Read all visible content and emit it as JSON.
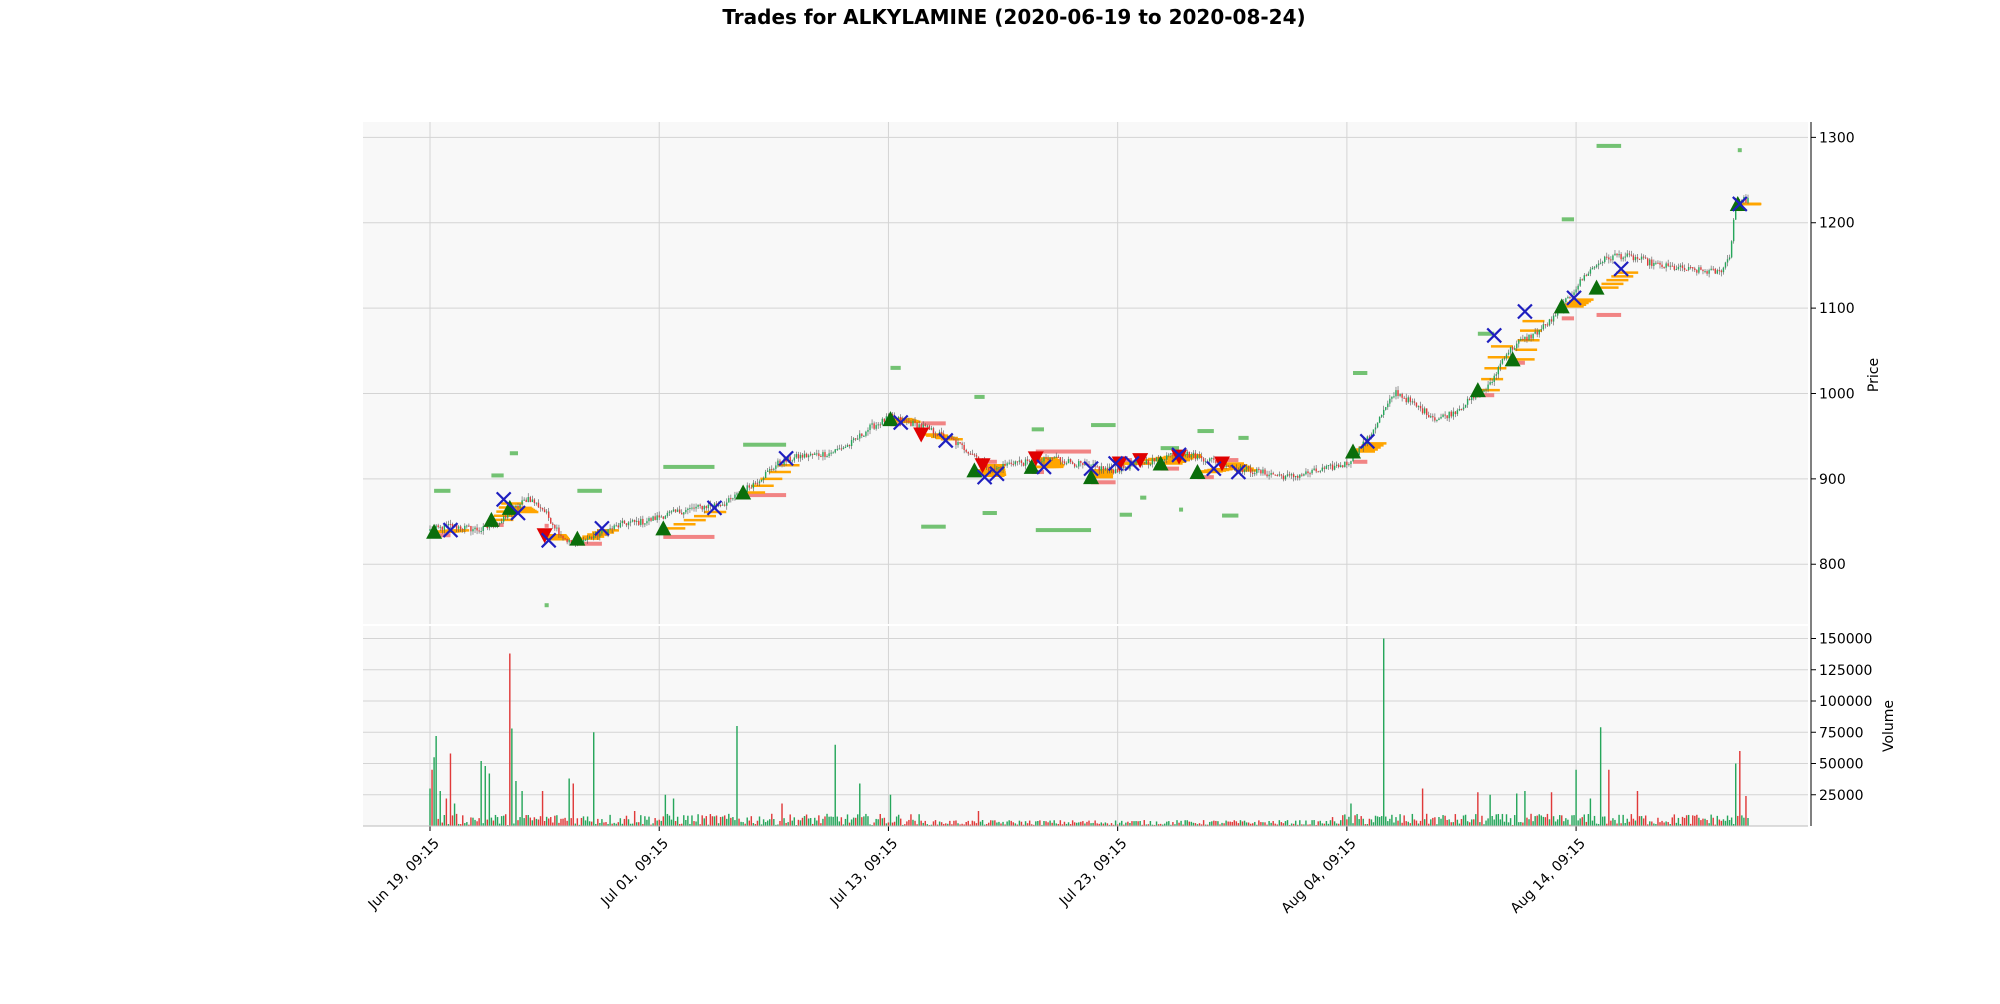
{
  "chart_data": {
    "type": "candlestick",
    "title": "Trades for ALKYLAMINE (2020-06-19 to 2020-08-24)",
    "price_panel": {
      "ylabel": "Price",
      "ylim": [
        730,
        1318
      ],
      "yticks": [
        800,
        900,
        1000,
        1100,
        1200,
        1300
      ],
      "grid": true,
      "background": "#f8f8f8"
    },
    "volume_panel": {
      "ylabel": "Volume",
      "ylim": [
        0,
        160000
      ],
      "yticks": [
        "25000",
        "50000",
        "75000",
        "100000",
        "125000",
        "150000"
      ],
      "ytick_values": [
        25000,
        50000,
        75000,
        100000,
        125000,
        150000
      ],
      "grid": true
    },
    "x_ticks": [
      "Jun 19, 09:15",
      "Jul 01, 09:15",
      "Jul 13, 09:15",
      "Jul 23, 09:15",
      "Aug 04, 09:15",
      "Aug 14, 09:15"
    ],
    "x_tick_index": [
      0,
      112,
      224,
      336,
      448,
      560
    ],
    "bar_count": 645,
    "price_path": [
      [
        0,
        840
      ],
      [
        10,
        845
      ],
      [
        25,
        840
      ],
      [
        35,
        850
      ],
      [
        40,
        862
      ],
      [
        48,
        878
      ],
      [
        55,
        865
      ],
      [
        60,
        848
      ],
      [
        65,
        832
      ],
      [
        70,
        822
      ],
      [
        75,
        828
      ],
      [
        85,
        838
      ],
      [
        95,
        848
      ],
      [
        105,
        850
      ],
      [
        115,
        858
      ],
      [
        130,
        866
      ],
      [
        145,
        872
      ],
      [
        160,
        898
      ],
      [
        170,
        918
      ],
      [
        180,
        926
      ],
      [
        195,
        930
      ],
      [
        205,
        940
      ],
      [
        215,
        960
      ],
      [
        225,
        972
      ],
      [
        240,
        962
      ],
      [
        255,
        945
      ],
      [
        265,
        930
      ],
      [
        275,
        910
      ],
      [
        285,
        920
      ],
      [
        295,
        918
      ],
      [
        305,
        925
      ],
      [
        320,
        915
      ],
      [
        335,
        910
      ],
      [
        345,
        918
      ],
      [
        355,
        922
      ],
      [
        365,
        932
      ],
      [
        375,
        926
      ],
      [
        385,
        920
      ],
      [
        395,
        912
      ],
      [
        405,
        908
      ],
      [
        420,
        902
      ],
      [
        435,
        910
      ],
      [
        448,
        918
      ],
      [
        458,
        946
      ],
      [
        465,
        975
      ],
      [
        472,
        1002
      ],
      [
        482,
        985
      ],
      [
        492,
        970
      ],
      [
        500,
        978
      ],
      [
        510,
        995
      ],
      [
        518,
        1010
      ],
      [
        525,
        1045
      ],
      [
        532,
        1060
      ],
      [
        540,
        1070
      ],
      [
        550,
        1090
      ],
      [
        558,
        1118
      ],
      [
        565,
        1140
      ],
      [
        572,
        1155
      ],
      [
        580,
        1162
      ],
      [
        590,
        1158
      ],
      [
        600,
        1150
      ],
      [
        615,
        1145
      ],
      [
        630,
        1142
      ],
      [
        635,
        1160
      ],
      [
        638,
        1225
      ],
      [
        645,
        1228
      ]
    ],
    "volume_spikes": [
      [
        0,
        30000
      ],
      [
        1,
        45000
      ],
      [
        2,
        55000
      ],
      [
        3,
        72000
      ],
      [
        5,
        28000
      ],
      [
        8,
        22000
      ],
      [
        10,
        58000
      ],
      [
        12,
        18000
      ],
      [
        25,
        52000
      ],
      [
        27,
        48000
      ],
      [
        29,
        42000
      ],
      [
        39,
        138000
      ],
      [
        40,
        78000
      ],
      [
        42,
        36000
      ],
      [
        45,
        28000
      ],
      [
        55,
        28000
      ],
      [
        68,
        38000
      ],
      [
        70,
        34000
      ],
      [
        80,
        75000
      ],
      [
        100,
        12000
      ],
      [
        115,
        25000
      ],
      [
        119,
        22000
      ],
      [
        150,
        80000
      ],
      [
        172,
        18000
      ],
      [
        198,
        65000
      ],
      [
        210,
        34000
      ],
      [
        225,
        25000
      ],
      [
        268,
        12000
      ],
      [
        450,
        18000
      ],
      [
        466,
        150000
      ],
      [
        485,
        30000
      ],
      [
        512,
        27000
      ],
      [
        518,
        25000
      ],
      [
        531,
        26000
      ],
      [
        535,
        28000
      ],
      [
        548,
        27000
      ],
      [
        560,
        45000
      ],
      [
        567,
        22000
      ],
      [
        572,
        79000
      ],
      [
        576,
        45000
      ],
      [
        590,
        28000
      ],
      [
        638,
        50000
      ],
      [
        640,
        60000
      ],
      [
        643,
        24000
      ]
    ],
    "trades": {
      "entries": [
        {
          "i": 2,
          "p": 838
        },
        {
          "i": 30,
          "p": 852
        },
        {
          "i": 39,
          "p": 866
        },
        {
          "i": 72,
          "p": 830
        },
        {
          "i": 114,
          "p": 842
        },
        {
          "i": 153,
          "p": 884
        },
        {
          "i": 225,
          "p": 970
        },
        {
          "i": 266,
          "p": 910
        },
        {
          "i": 294,
          "p": 914
        },
        {
          "i": 323,
          "p": 902
        },
        {
          "i": 357,
          "p": 918
        },
        {
          "i": 375,
          "p": 908
        },
        {
          "i": 451,
          "p": 932
        },
        {
          "i": 512,
          "p": 1004
        },
        {
          "i": 529,
          "p": 1040
        },
        {
          "i": 553,
          "p": 1102
        },
        {
          "i": 570,
          "p": 1124
        },
        {
          "i": 639,
          "p": 1222
        }
      ],
      "short_entries": [
        {
          "i": 56,
          "p": 834
        },
        {
          "i": 240,
          "p": 952
        },
        {
          "i": 270,
          "p": 916
        },
        {
          "i": 296,
          "p": 924
        },
        {
          "i": 337,
          "p": 918
        },
        {
          "i": 347,
          "p": 922
        },
        {
          "i": 366,
          "p": 926
        },
        {
          "i": 387,
          "p": 918
        }
      ],
      "exits": [
        {
          "i": 10,
          "p": 840
        },
        {
          "i": 36,
          "p": 876
        },
        {
          "i": 43,
          "p": 860
        },
        {
          "i": 58,
          "p": 828
        },
        {
          "i": 84,
          "p": 842
        },
        {
          "i": 139,
          "p": 866
        },
        {
          "i": 174,
          "p": 924
        },
        {
          "i": 230,
          "p": 966
        },
        {
          "i": 252,
          "p": 945
        },
        {
          "i": 271,
          "p": 902
        },
        {
          "i": 277,
          "p": 906
        },
        {
          "i": 300,
          "p": 914
        },
        {
          "i": 323,
          "p": 912
        },
        {
          "i": 335,
          "p": 918
        },
        {
          "i": 343,
          "p": 918
        },
        {
          "i": 366,
          "p": 928
        },
        {
          "i": 383,
          "p": 912
        },
        {
          "i": 395,
          "p": 908
        },
        {
          "i": 458,
          "p": 944
        },
        {
          "i": 520,
          "p": 1068
        },
        {
          "i": 535,
          "p": 1096
        },
        {
          "i": 559,
          "p": 1112
        },
        {
          "i": 582,
          "p": 1146
        },
        {
          "i": 640,
          "p": 1222
        }
      ],
      "profit_levels": [
        {
          "i0": 2,
          "i1": 10,
          "p": 886
        },
        {
          "i0": 30,
          "i1": 36,
          "p": 904
        },
        {
          "i0": 39,
          "i1": 43,
          "p": 930
        },
        {
          "i0": 56,
          "i1": 58,
          "p": 752
        },
        {
          "i0": 72,
          "i1": 84,
          "p": 886
        },
        {
          "i0": 114,
          "i1": 139,
          "p": 914
        },
        {
          "i0": 153,
          "i1": 174,
          "p": 940
        },
        {
          "i0": 225,
          "i1": 230,
          "p": 1030
        },
        {
          "i0": 240,
          "i1": 252,
          "p": 844
        },
        {
          "i0": 266,
          "i1": 271,
          "p": 996
        },
        {
          "i0": 270,
          "i1": 277,
          "p": 860
        },
        {
          "i0": 294,
          "i1": 300,
          "p": 958
        },
        {
          "i0": 296,
          "i1": 323,
          "p": 840
        },
        {
          "i0": 323,
          "i1": 335,
          "p": 963
        },
        {
          "i0": 337,
          "i1": 343,
          "p": 858
        },
        {
          "i0": 347,
          "i1": 350,
          "p": 878
        },
        {
          "i0": 357,
          "i1": 366,
          "p": 936
        },
        {
          "i0": 366,
          "i1": 367,
          "p": 864
        },
        {
          "i0": 375,
          "i1": 383,
          "p": 956
        },
        {
          "i0": 387,
          "i1": 395,
          "p": 857
        },
        {
          "i0": 395,
          "i1": 400,
          "p": 948
        },
        {
          "i0": 451,
          "i1": 458,
          "p": 1024
        },
        {
          "i0": 512,
          "i1": 520,
          "p": 1070
        },
        {
          "i0": 553,
          "i1": 559,
          "p": 1204
        },
        {
          "i0": 570,
          "i1": 582,
          "p": 1290
        },
        {
          "i0": 639,
          "i1": 640,
          "p": 1285
        }
      ],
      "stop_levels": [
        {
          "i0": 2,
          "i1": 10,
          "p": 834
        },
        {
          "i0": 30,
          "i1": 36,
          "p": 846
        },
        {
          "i0": 39,
          "i1": 43,
          "p": 860
        },
        {
          "i0": 56,
          "i1": 58,
          "p": 845
        },
        {
          "i0": 72,
          "i1": 84,
          "p": 824
        },
        {
          "i0": 114,
          "i1": 139,
          "p": 832
        },
        {
          "i0": 153,
          "i1": 174,
          "p": 881
        },
        {
          "i0": 225,
          "i1": 230,
          "p": 964
        },
        {
          "i0": 240,
          "i1": 252,
          "p": 965
        },
        {
          "i0": 266,
          "i1": 271,
          "p": 906
        },
        {
          "i0": 270,
          "i1": 277,
          "p": 920
        },
        {
          "i0": 294,
          "i1": 300,
          "p": 908
        },
        {
          "i0": 296,
          "i1": 323,
          "p": 932
        },
        {
          "i0": 323,
          "i1": 335,
          "p": 896
        },
        {
          "i0": 337,
          "i1": 343,
          "p": 922
        },
        {
          "i0": 347,
          "i1": 350,
          "p": 926
        },
        {
          "i0": 357,
          "i1": 366,
          "p": 912
        },
        {
          "i0": 366,
          "i1": 367,
          "p": 930
        },
        {
          "i0": 375,
          "i1": 383,
          "p": 902
        },
        {
          "i0": 387,
          "i1": 395,
          "p": 922
        },
        {
          "i0": 451,
          "i1": 458,
          "p": 920
        },
        {
          "i0": 512,
          "i1": 520,
          "p": 998
        },
        {
          "i0": 529,
          "i1": 535,
          "p": 1036
        },
        {
          "i0": 553,
          "i1": 559,
          "p": 1088
        },
        {
          "i0": 570,
          "i1": 582,
          "p": 1092
        },
        {
          "i0": 639,
          "i1": 640,
          "p": 1216
        }
      ]
    },
    "colors": {
      "up": "#26a65b",
      "down": "#e03a3a",
      "entry_marker": "#0b6e0b",
      "short_marker": "#e00000",
      "exit_marker": "#1f1fbf",
      "pyramid_line": "#ffa500",
      "profit_band": "#5cb85c",
      "stop_band": "#f07070",
      "grid": "#d4d4d4",
      "panel_bg": "#f8f8f8"
    }
  }
}
